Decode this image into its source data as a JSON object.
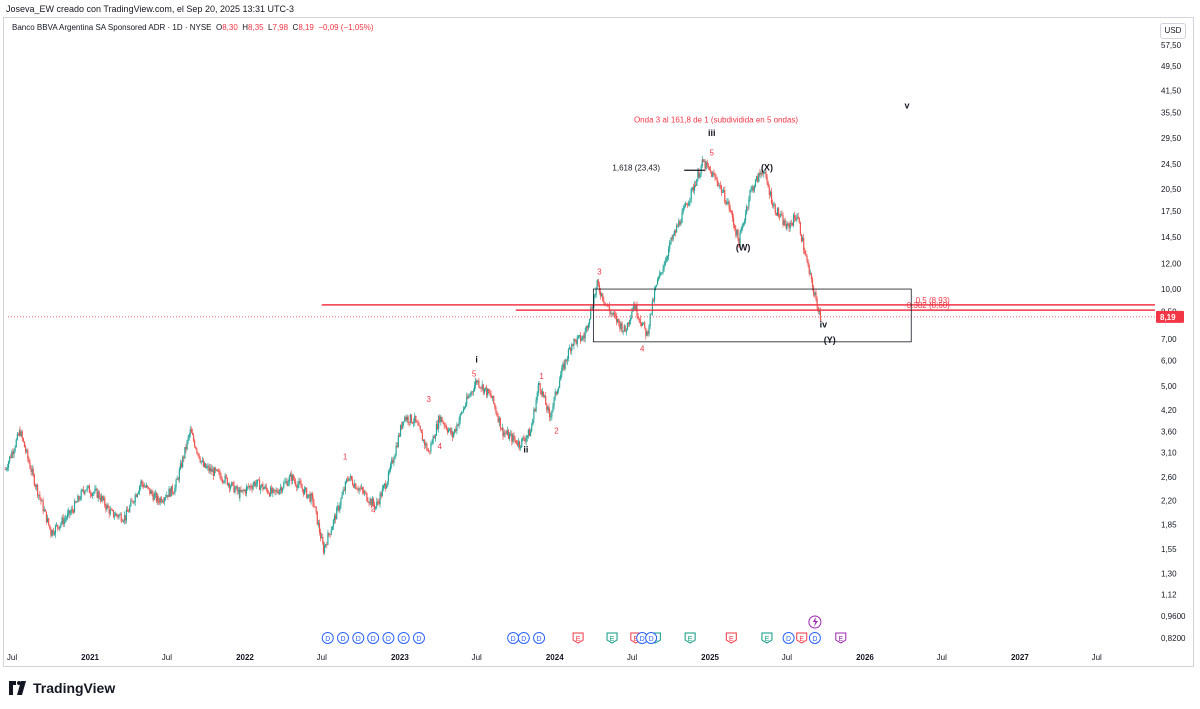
{
  "header": {
    "attribution": "Joseva_EW creado con TradingView.com, el Sep 20, 2025 13:31 UTC-3"
  },
  "symbol": {
    "name": "Banco BBVA Argentina SA Sponsored ADR · 1D · NYSE",
    "o_label": "O",
    "o_value": "8,30",
    "h_label": "H",
    "h_value": "8,35",
    "l_label": "L",
    "l_value": "7,98",
    "c_label": "C",
    "c_value": "8,19",
    "change": "−0,09 (−1,05%)"
  },
  "currency": "USD",
  "colors": {
    "up": "#26a69a",
    "down": "#ef5350",
    "red_label": "#f23645",
    "event_blue": "#2962ff",
    "event_red": "#f23645",
    "event_green": "#089981",
    "event_purple": "#9c27b0",
    "text": "#131722"
  },
  "brand": {
    "name": "TradingView"
  },
  "chart_data": {
    "type": "candlestick",
    "scale": "log",
    "y_ticks": [
      "57,50",
      "49,50",
      "41,50",
      "35,50",
      "29,50",
      "24,50",
      "20,50",
      "17,50",
      "14,50",
      "12,00",
      "10,00",
      "8,50",
      "7,00",
      "6,00",
      "5,00",
      "4,20",
      "3,60",
      "3,10",
      "2,60",
      "2,20",
      "1,85",
      "1,55",
      "1,30",
      "1,12",
      "0,9600",
      "0,8200"
    ],
    "y_tick_values": [
      57.5,
      49.5,
      41.5,
      35.5,
      29.5,
      24.5,
      20.5,
      17.5,
      14.5,
      12.0,
      10.0,
      8.5,
      7.0,
      6.0,
      5.0,
      4.2,
      3.6,
      3.1,
      2.6,
      2.2,
      1.85,
      1.55,
      1.3,
      1.12,
      0.96,
      0.82
    ],
    "x_ticks": [
      "Jul",
      "2021",
      "Jul",
      "2022",
      "Jul",
      "2023",
      "Jul",
      "2024",
      "Jul",
      "2025",
      "Jul",
      "2026",
      "Jul",
      "2027",
      "Jul"
    ],
    "x_tick_dates": [
      "2020-07-01",
      "2021-01-01",
      "2021-07-01",
      "2022-01-01",
      "2022-07-01",
      "2023-01-01",
      "2023-07-01",
      "2024-01-01",
      "2024-07-01",
      "2025-01-01",
      "2025-07-01",
      "2026-01-01",
      "2026-07-01",
      "2027-01-01",
      "2027-07-01"
    ],
    "price_path": [
      [
        "2020-06-15",
        2.75
      ],
      [
        "2020-07-20",
        3.6
      ],
      [
        "2020-08-20",
        2.6
      ],
      [
        "2020-10-01",
        1.75
      ],
      [
        "2020-11-15",
        2.0
      ],
      [
        "2020-12-20",
        2.4
      ],
      [
        "2021-01-20",
        2.3
      ],
      [
        "2021-02-20",
        2.0
      ],
      [
        "2021-03-25",
        1.95
      ],
      [
        "2021-05-01",
        2.5
      ],
      [
        "2021-06-10",
        2.2
      ],
      [
        "2021-07-20",
        2.4
      ],
      [
        "2021-08-25",
        3.6
      ],
      [
        "2021-09-25",
        2.8
      ],
      [
        "2021-11-10",
        2.6
      ],
      [
        "2021-12-20",
        2.3
      ],
      [
        "2022-01-25",
        2.5
      ],
      [
        "2022-03-10",
        2.3
      ],
      [
        "2022-04-20",
        2.6
      ],
      [
        "2022-06-10",
        2.2
      ],
      [
        "2022-07-05",
        1.55
      ],
      [
        "2022-08-10",
        2.1
      ],
      [
        "2022-09-01",
        2.6
      ],
      [
        "2022-10-10",
        2.3
      ],
      [
        "2022-11-05",
        2.1
      ],
      [
        "2022-12-05",
        2.6
      ],
      [
        "2023-01-10",
        4.0
      ],
      [
        "2023-02-05",
        3.9
      ],
      [
        "2023-03-10",
        3.1
      ],
      [
        "2023-04-05",
        4.0
      ],
      [
        "2023-05-05",
        3.5
      ],
      [
        "2023-06-05",
        4.4
      ],
      [
        "2023-07-01",
        5.2
      ],
      [
        "2023-08-05",
        4.6
      ],
      [
        "2023-09-01",
        3.6
      ],
      [
        "2023-10-10",
        3.3
      ],
      [
        "2023-11-05",
        3.6
      ],
      [
        "2023-11-25",
        5.1
      ],
      [
        "2023-12-20",
        4.0
      ],
      [
        "2024-01-15",
        5.4
      ],
      [
        "2024-02-10",
        6.8
      ],
      [
        "2024-03-10",
        7.1
      ],
      [
        "2024-04-10",
        10.3
      ],
      [
        "2024-05-10",
        8.5
      ],
      [
        "2024-06-15",
        7.4
      ],
      [
        "2024-07-05",
        9.0
      ],
      [
        "2024-08-05",
        7.2
      ],
      [
        "2024-08-25",
        10.0
      ],
      [
        "2024-10-01",
        14.0
      ],
      [
        "2024-11-15",
        19.5
      ],
      [
        "2024-12-15",
        24.8
      ],
      [
        "2025-01-20",
        21.5
      ],
      [
        "2025-02-15",
        18.0
      ],
      [
        "2025-03-10",
        14.0
      ],
      [
        "2025-04-05",
        20.0
      ],
      [
        "2025-05-05",
        23.6
      ],
      [
        "2025-06-01",
        18.0
      ],
      [
        "2025-07-01",
        15.5
      ],
      [
        "2025-07-25",
        17.0
      ],
      [
        "2025-08-20",
        11.6
      ],
      [
        "2025-09-05",
        9.5
      ],
      [
        "2025-09-19",
        8.19
      ]
    ],
    "last_price": "8,19",
    "annotations": [
      {
        "text": "Onda 3 al 161,8 de 1 (subdividida en 5 ondas)",
        "date": "2025-01-15",
        "price": 33.0,
        "color": "red"
      },
      {
        "text": "v",
        "date": "2026-04-10",
        "price": 36.5,
        "color": "dark"
      },
      {
        "text": "iii",
        "date": "2025-01-05",
        "price": 30.0,
        "color": "dark"
      },
      {
        "text": "5",
        "date": "2025-01-05",
        "price": 26.0,
        "color": "red"
      },
      {
        "text": "(X)",
        "date": "2025-05-15",
        "price": 23.4,
        "color": "dark"
      },
      {
        "text": "1,618 (23,43)",
        "date": "2024-09-05",
        "price": 23.43,
        "color": "dark"
      },
      {
        "text": "(W)",
        "date": "2025-03-20",
        "price": 13.2,
        "color": "dark"
      },
      {
        "text": "3",
        "date": "2024-04-15",
        "price": 11.1,
        "color": "red"
      },
      {
        "text": "4",
        "date": "2024-07-25",
        "price": 6.4,
        "color": "red"
      },
      {
        "text": "iv",
        "date": "2025-09-25",
        "price": 7.6,
        "color": "dark"
      },
      {
        "text": "(Y)",
        "date": "2025-10-10",
        "price": 6.8,
        "color": "dark"
      },
      {
        "text": "0.5 (8,93)",
        "date": "2026-07-20",
        "price": 9.05,
        "color": "red"
      },
      {
        "text": "0.382 (8,60)",
        "date": "2026-07-20",
        "price": 8.72,
        "color": "red"
      },
      {
        "text": "i",
        "date": "2023-07-01",
        "price": 5.9,
        "color": "dark"
      },
      {
        "text": "5",
        "date": "2023-06-25",
        "price": 5.35,
        "color": "red"
      },
      {
        "text": "1",
        "date": "2023-12-01",
        "price": 5.25,
        "color": "red"
      },
      {
        "text": "3",
        "date": "2023-03-10",
        "price": 4.45,
        "color": "red"
      },
      {
        "text": "4",
        "date": "2023-04-05",
        "price": 3.18,
        "color": "red"
      },
      {
        "text": "ii",
        "date": "2023-10-25",
        "price": 3.1,
        "color": "dark"
      },
      {
        "text": "2",
        "date": "2024-01-05",
        "price": 3.55,
        "color": "red"
      },
      {
        "text": "1",
        "date": "2022-08-25",
        "price": 2.95,
        "color": "red"
      },
      {
        "text": "2",
        "date": "2022-10-30",
        "price": 2.03,
        "color": "red"
      }
    ],
    "fib_levels": [
      {
        "label": "0.5 (8,93)",
        "price": 8.93
      },
      {
        "label": "0.382 (8,60)",
        "price": 8.6
      }
    ],
    "red_line_price": 8.93,
    "red_line2_price": 8.6,
    "last_price_dotted": 8.19,
    "target_line": {
      "price": 23.43,
      "start": "2024-11-01",
      "end": "2024-12-20"
    },
    "box": {
      "start": "2024-04-01",
      "end": "2026-04-20",
      "top": 10.0,
      "bottom": 6.85
    },
    "events": [
      {
        "t": "D",
        "date": "2022-07-15",
        "c": "blue"
      },
      {
        "t": "D",
        "date": "2022-08-20",
        "c": "blue"
      },
      {
        "t": "D",
        "date": "2022-09-25",
        "c": "blue"
      },
      {
        "t": "D",
        "date": "2022-10-30",
        "c": "blue"
      },
      {
        "t": "D",
        "date": "2022-12-05",
        "c": "blue"
      },
      {
        "t": "D",
        "date": "2023-01-10",
        "c": "blue"
      },
      {
        "t": "D",
        "date": "2023-02-15",
        "c": "blue"
      },
      {
        "t": "D",
        "date": "2023-09-25",
        "c": "blue"
      },
      {
        "t": "D",
        "date": "2023-10-20",
        "c": "blue"
      },
      {
        "t": "D",
        "date": "2023-11-25",
        "c": "blue"
      },
      {
        "t": "E",
        "date": "2024-02-25",
        "c": "red"
      },
      {
        "t": "E",
        "date": "2024-05-15",
        "c": "green"
      },
      {
        "t": "E",
        "date": "2024-07-10",
        "c": "red"
      },
      {
        "t": "D",
        "date": "2024-07-25",
        "c": "blue"
      },
      {
        "t": "E",
        "date": "2024-08-25",
        "c": "green"
      },
      {
        "t": "D",
        "date": "2024-08-15",
        "c": "blue"
      },
      {
        "t": "E",
        "date": "2024-11-15",
        "c": "green"
      },
      {
        "t": "E",
        "date": "2025-02-20",
        "c": "red"
      },
      {
        "t": "E",
        "date": "2025-05-15",
        "c": "green"
      },
      {
        "t": "D",
        "date": "2025-07-05",
        "c": "blue"
      },
      {
        "t": "E",
        "date": "2025-08-05",
        "c": "red"
      },
      {
        "t": "D",
        "date": "2025-09-05",
        "c": "blue"
      },
      {
        "t": "E",
        "date": "2025-11-05",
        "c": "purple"
      }
    ],
    "flash_event": {
      "date": "2025-09-05"
    }
  }
}
